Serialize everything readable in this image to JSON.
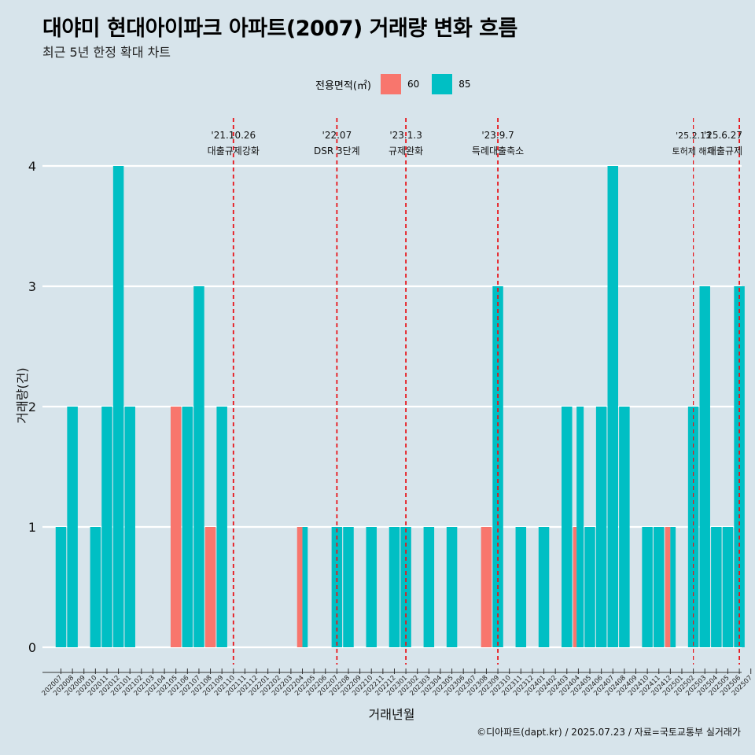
{
  "title": "대야미 현대아이파크 아파트(2007) 거래량 변화 흐름",
  "subtitle": "최근 5년 한정 확대 차트",
  "caption": "©디아파트(dapt.kr) / 2025.07.23 / 자료=국토교통부 실거래가",
  "legend": {
    "title": "전용면적(㎡)",
    "items": [
      {
        "label": "60",
        "color": "#f8766d"
      },
      {
        "label": "85",
        "color": "#00bfc4"
      }
    ]
  },
  "chart_data": {
    "type": "bar",
    "title": "대야미 현대아이파크 아파트(2007) 거래량 변화 흐름",
    "subtitle": "최근 5년 한정 확대 차트",
    "xlabel": "거래년월",
    "ylabel": "거래량(건)",
    "ylim": [
      0,
      4
    ],
    "yticks": [
      0,
      1,
      2,
      3,
      4
    ],
    "grid": true,
    "legend_position": "top",
    "categories": [
      "202007",
      "202008",
      "202009",
      "202010",
      "202011",
      "202012",
      "202101",
      "202102",
      "202103",
      "202104",
      "202105",
      "202106",
      "202107",
      "202108",
      "202109",
      "202110",
      "202111",
      "202112",
      "202201",
      "202202",
      "202203",
      "202204",
      "202205",
      "202206",
      "202207",
      "202208",
      "202209",
      "202210",
      "202211",
      "202212",
      "202301",
      "202302",
      "202303",
      "202304",
      "202305",
      "202306",
      "202307",
      "202308",
      "202309",
      "202310",
      "202311",
      "202312",
      "202401",
      "202402",
      "202403",
      "202404",
      "202405",
      "202406",
      "202407",
      "202408",
      "202409",
      "202410",
      "202411",
      "202412",
      "202501",
      "202502",
      "202503",
      "202504",
      "202505",
      "202506",
      "202507"
    ],
    "series": [
      {
        "name": "60",
        "color": "#f8766d",
        "values": [
          0,
          0,
          0,
          0,
          0,
          0,
          0,
          0,
          0,
          0,
          2,
          0,
          0,
          1,
          0,
          0,
          0,
          0,
          0,
          0,
          0,
          1,
          0,
          0,
          0,
          0,
          0,
          0,
          0,
          0,
          0,
          0,
          0,
          0,
          0,
          0,
          0,
          1,
          0,
          0,
          0,
          0,
          0,
          0,
          0,
          1,
          0,
          0,
          0,
          0,
          0,
          0,
          0,
          1,
          0,
          0,
          0,
          0,
          0,
          0,
          0
        ]
      },
      {
        "name": "85",
        "color": "#00bfc4",
        "values": [
          1,
          2,
          0,
          1,
          2,
          4,
          2,
          0,
          0,
          0,
          0,
          2,
          3,
          0,
          2,
          0,
          0,
          0,
          0,
          0,
          0,
          1,
          0,
          0,
          1,
          1,
          0,
          1,
          0,
          1,
          1,
          0,
          1,
          0,
          1,
          0,
          0,
          0,
          3,
          0,
          1,
          0,
          1,
          0,
          2,
          2,
          1,
          2,
          4,
          2,
          0,
          1,
          1,
          1,
          0,
          2,
          3,
          1,
          1,
          3,
          0
        ]
      }
    ],
    "annotations": [
      {
        "category": "202110",
        "date": "'21.10.26",
        "label": "대출규제강화"
      },
      {
        "category": "202207",
        "date": "'22.07",
        "label": "DSR 3단계"
      },
      {
        "category": "202301",
        "date": "'23.1.3",
        "label": "규제완화"
      },
      {
        "category": "202309",
        "date": "'23.9.7",
        "label": "특례대출축소"
      },
      {
        "category": "202502",
        "date": "'25.2.13",
        "label": "토허제 해제"
      },
      {
        "category": "202506",
        "date": "'25.6.27",
        "label": "대출규제"
      }
    ]
  }
}
